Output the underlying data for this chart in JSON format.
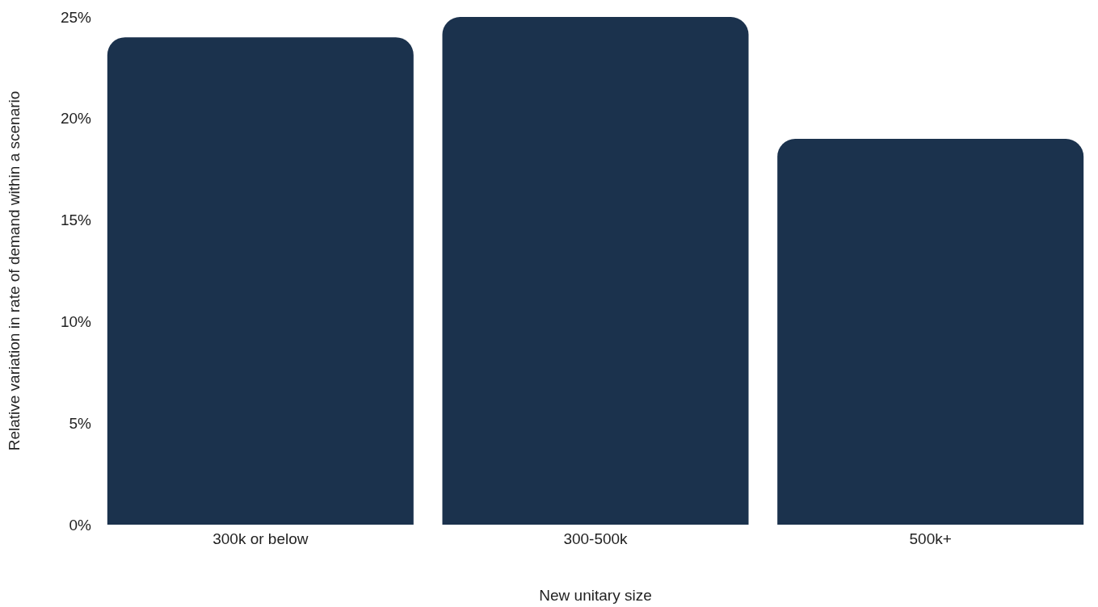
{
  "chart_data": {
    "type": "bar",
    "xlabel": "New unitary size",
    "ylabel": "Relative variation in rate of demand within a scenario",
    "categories": [
      "300k or below",
      "300-500k",
      "500k+"
    ],
    "values": [
      24,
      25,
      19
    ],
    "color": "#1b324d",
    "ylim": [
      0,
      25
    ],
    "yticks": [
      {
        "value": 0,
        "label": "0%"
      },
      {
        "value": 5,
        "label": "5%"
      },
      {
        "value": 10,
        "label": "10%"
      },
      {
        "value": 15,
        "label": "15%"
      },
      {
        "value": 20,
        "label": "20%"
      },
      {
        "value": 25,
        "label": "25%"
      }
    ],
    "grid": false
  }
}
